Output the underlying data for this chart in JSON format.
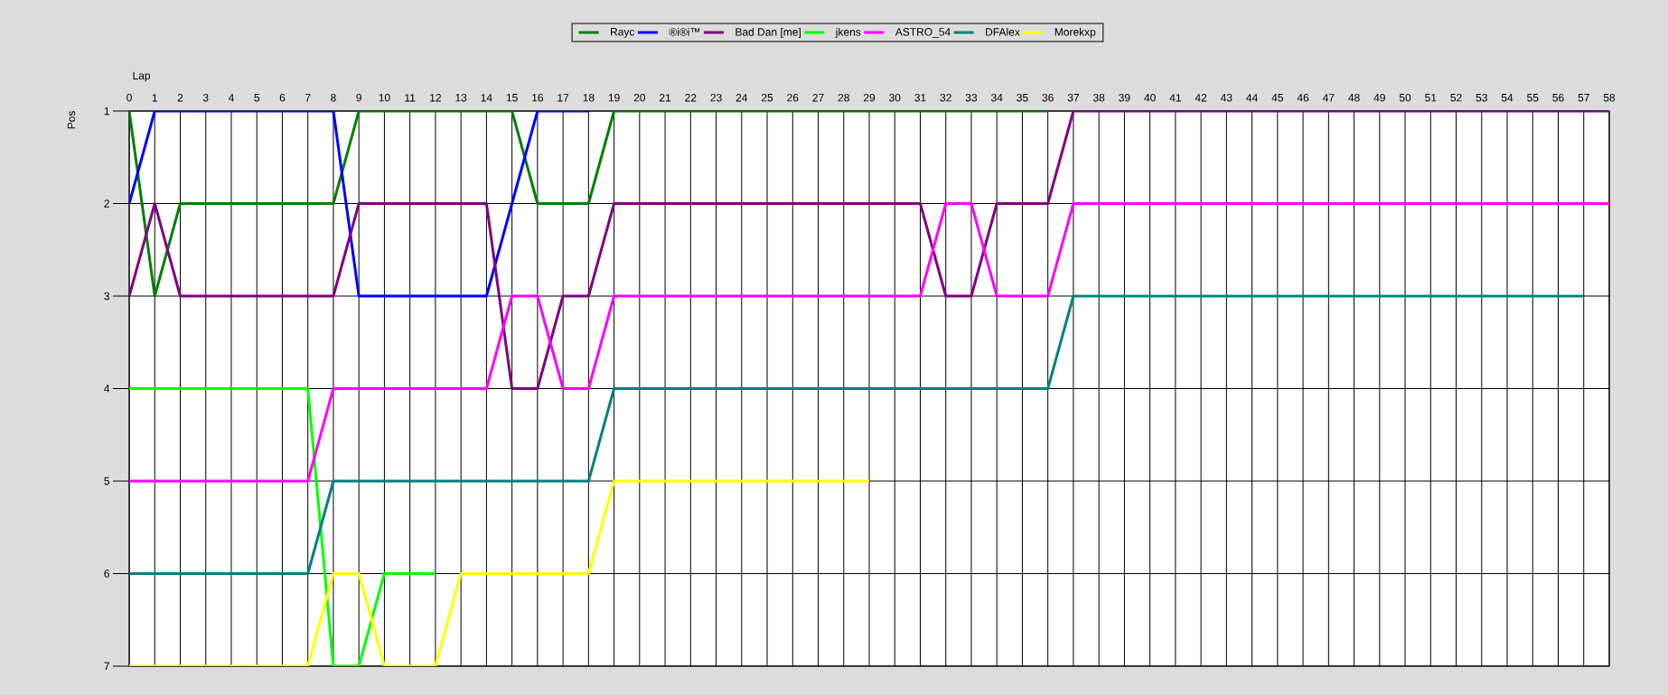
{
  "chart_data": {
    "type": "line",
    "xlabel": "Lap",
    "ylabel": "Pos",
    "x": [
      0,
      1,
      2,
      3,
      4,
      5,
      6,
      7,
      8,
      9,
      10,
      11,
      12,
      13,
      14,
      15,
      16,
      17,
      18,
      19,
      20,
      21,
      22,
      23,
      24,
      25,
      26,
      27,
      28,
      29,
      30,
      31,
      32,
      33,
      34,
      35,
      36,
      37,
      38,
      39,
      40,
      41,
      42,
      43,
      44,
      45,
      46,
      47,
      48,
      49,
      50,
      51,
      52,
      53,
      54,
      55,
      56,
      57,
      58
    ],
    "series": [
      {
        "name": "Rayc",
        "color": "#008000",
        "values": [
          1,
          3,
          2,
          2,
          2,
          2,
          2,
          2,
          2,
          1,
          1,
          1,
          1,
          1,
          1,
          1,
          2,
          2,
          2,
          1,
          1,
          1,
          1,
          1,
          1,
          1,
          1,
          1,
          1,
          1,
          1,
          1,
          1,
          1,
          1,
          1,
          1,
          null,
          null,
          null,
          null,
          null,
          null,
          null,
          null,
          null,
          null,
          null,
          null,
          null,
          null,
          null,
          null,
          null,
          null,
          null,
          null,
          null,
          null
        ]
      },
      {
        "name": "®i®i™",
        "color": "#0000ff",
        "values": [
          2,
          1,
          1,
          1,
          1,
          1,
          1,
          1,
          1,
          3,
          3,
          3,
          3,
          3,
          3,
          2,
          1,
          1,
          1,
          null,
          null,
          null,
          null,
          null,
          null,
          null,
          null,
          null,
          null,
          null,
          null,
          null,
          null,
          null,
          null,
          null,
          null,
          null,
          null,
          null,
          null,
          null,
          null,
          null,
          null,
          null,
          null,
          null,
          null,
          null,
          null,
          null,
          null,
          null,
          null,
          null,
          null,
          null,
          null
        ]
      },
      {
        "name": "Bad Dan [me]",
        "color": "#800080",
        "values": [
          3,
          2,
          3,
          3,
          3,
          3,
          3,
          3,
          3,
          2,
          2,
          2,
          2,
          2,
          2,
          4,
          4,
          3,
          3,
          2,
          2,
          2,
          2,
          2,
          2,
          2,
          2,
          2,
          2,
          2,
          2,
          2,
          3,
          3,
          2,
          2,
          2,
          1,
          1,
          1,
          1,
          1,
          1,
          1,
          1,
          1,
          1,
          1,
          1,
          1,
          1,
          1,
          1,
          1,
          1,
          1,
          1,
          1,
          1
        ]
      },
      {
        "name": "jkens",
        "color": "#00ff00",
        "values": [
          4,
          4,
          4,
          4,
          4,
          4,
          4,
          4,
          7,
          7,
          6,
          6,
          6,
          null,
          null,
          null,
          null,
          null,
          null,
          null,
          null,
          null,
          null,
          null,
          null,
          null,
          null,
          null,
          null,
          null,
          null,
          null,
          null,
          null,
          null,
          null,
          null,
          null,
          null,
          null,
          null,
          null,
          null,
          null,
          null,
          null,
          null,
          null,
          null,
          null,
          null,
          null,
          null,
          null,
          null,
          null,
          null,
          null,
          null
        ]
      },
      {
        "name": "ASTRO_54",
        "color": "#ff00ff",
        "values": [
          5,
          5,
          5,
          5,
          5,
          5,
          5,
          5,
          4,
          4,
          4,
          4,
          4,
          4,
          4,
          3,
          3,
          4,
          4,
          3,
          3,
          3,
          3,
          3,
          3,
          3,
          3,
          3,
          3,
          3,
          3,
          3,
          2,
          2,
          3,
          3,
          3,
          2,
          2,
          2,
          2,
          2,
          2,
          2,
          2,
          2,
          2,
          2,
          2,
          2,
          2,
          2,
          2,
          2,
          2,
          2,
          2,
          2,
          2
        ]
      },
      {
        "name": "DFAlex",
        "color": "#008080",
        "values": [
          6,
          6,
          6,
          6,
          6,
          6,
          6,
          6,
          5,
          5,
          5,
          5,
          5,
          5,
          5,
          5,
          5,
          5,
          5,
          4,
          4,
          4,
          4,
          4,
          4,
          4,
          4,
          4,
          4,
          4,
          4,
          4,
          4,
          4,
          4,
          4,
          4,
          3,
          3,
          3,
          3,
          3,
          3,
          3,
          3,
          3,
          3,
          3,
          3,
          3,
          3,
          3,
          3,
          3,
          3,
          3,
          3,
          3,
          null
        ]
      },
      {
        "name": "Morekxp",
        "color": "#ffff00",
        "values": [
          7,
          7,
          7,
          7,
          7,
          7,
          7,
          7,
          6,
          6,
          7,
          7,
          7,
          6,
          6,
          6,
          6,
          6,
          6,
          5,
          5,
          5,
          5,
          5,
          5,
          5,
          5,
          5,
          5,
          5,
          null,
          null,
          null,
          null,
          null,
          null,
          null,
          null,
          null,
          null,
          null,
          null,
          null,
          null,
          null,
          null,
          null,
          null,
          null,
          null,
          null,
          null,
          null,
          null,
          null,
          null,
          null,
          null,
          null
        ]
      }
    ],
    "xlim": [
      0,
      58
    ],
    "ylim": [
      7,
      1
    ],
    "xticks": [
      0,
      1,
      2,
      3,
      4,
      5,
      6,
      7,
      8,
      9,
      10,
      11,
      12,
      13,
      14,
      15,
      16,
      17,
      18,
      19,
      20,
      21,
      22,
      23,
      24,
      25,
      26,
      27,
      28,
      29,
      30,
      31,
      32,
      33,
      34,
      35,
      36,
      37,
      38,
      39,
      40,
      41,
      42,
      43,
      44,
      45,
      46,
      47,
      48,
      49,
      50,
      51,
      52,
      53,
      54,
      55,
      56,
      57,
      58
    ],
    "yticks": [
      1,
      2,
      3,
      4,
      5,
      6,
      7
    ],
    "grid": true,
    "legend": "top"
  }
}
